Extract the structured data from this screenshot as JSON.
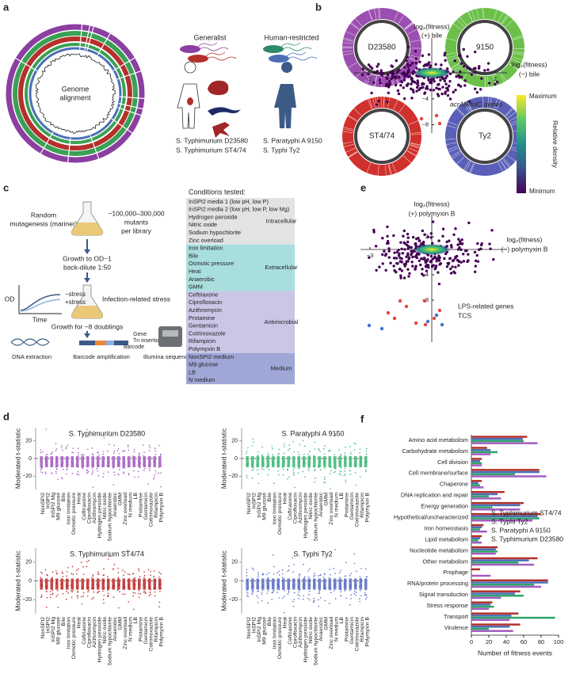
{
  "panel_labels": [
    "a",
    "b",
    "c",
    "d",
    "e",
    "f"
  ],
  "a": {
    "center_label": [
      "Genome",
      "alignment"
    ],
    "generalist": "Generalist",
    "human_restricted": "Human-restricted",
    "legend": [
      {
        "text": "S. Typhimurium D23580",
        "color": "#8b3fa0"
      },
      {
        "text": "S. Typhimurium ST4/74",
        "color": "#b5302a"
      },
      {
        "text": "S. Paratyphi A 9150",
        "color": "#2f8a6a"
      },
      {
        "text": "S. Typhi Ty2",
        "color": "#4a6fb5"
      }
    ]
  },
  "b": {
    "rings": [
      {
        "label": "D23580",
        "color": "#9b4fb0"
      },
      {
        "label": "9150",
        "color": "#6cc04a"
      },
      {
        "label": "ST4/74",
        "color": "#d0312d"
      },
      {
        "label": "Ty2",
        "color": "#5a5fb8"
      }
    ]
  },
  "c": {
    "mutagenesis": [
      "Random",
      "mutagenesis (mariner)"
    ],
    "mutants": [
      "~100,000–300,000",
      "mutants",
      "per library"
    ],
    "growth": [
      "Growth to OD~1",
      "back-dilute 1:50"
    ],
    "od": "OD",
    "time": "Time",
    "minus_stress": "−stress",
    "plus_stress": "+stress",
    "infection": "Infection-related stress",
    "doublings": "Growth for ~8 doublings",
    "dna": "DNA extraction",
    "barcode_amp": "Barcode amplification",
    "illumina": "Illumina sequencing",
    "gene": "Gene",
    "tn": "Tn insertion",
    "barcode": "Barcode",
    "conditions_title": "Conditions tested:",
    "groups": [
      {
        "name": "Intracellular",
        "color": "#e3e3e3",
        "text_color": "#888888",
        "items": [
          "InSPI2 media 1 (low pH, low P)",
          "InSPI2 media 2 (low pH, low P, low Mg)",
          "Hydrogen peroxide",
          "Nitric oxide",
          "Sodium hypochlorite",
          "Zinc overload"
        ]
      },
      {
        "name": "Extracellular",
        "color": "#a9dede",
        "text_color": "#e8f8f8",
        "items": [
          "Iron limitation",
          "Bile",
          "Osmotic pressure",
          "Heat",
          "Anaerobic",
          "GMM"
        ]
      },
      {
        "name": "Antimicrobial",
        "color": "#c9c6e6",
        "text_color": "#eeeefa",
        "items": [
          "Ceftriaxone",
          "Ciprofloxacin",
          "Azithromycin",
          "Protamine",
          "Gentamicin",
          "Cotrimoxazole",
          "Rifampicin",
          "Polymyxin B"
        ]
      },
      {
        "name": "Medium",
        "color": "#9fa7d6",
        "text_color": "#dde2f5",
        "items": [
          "NonSPI2 medium",
          "M9 glucose",
          "LB",
          "N medium"
        ]
      }
    ]
  },
  "d": {
    "ylabel": "Moderated t-statistic",
    "ylim": [
      -35,
      35
    ],
    "yticks": [
      {
        "value": -20,
        "label": "−20"
      },
      0,
      20
    ],
    "conditions": [
      "NonSPI2",
      "InSPI2",
      "InSPI2 Mg",
      "M9 glucose",
      "Bile",
      "Iron limitation",
      "Osmotic pressure",
      "Heat",
      "Ceftriaxone",
      "Ciprofloxacin",
      "Azithromycin",
      "Hydrogen peroxide",
      "Nitric oxide",
      "Sodium hypochlorite",
      "Anaerobic",
      "GMM",
      "Zinc overload",
      "N medium",
      "LB",
      "Protamine",
      "Gentamicin",
      "Cotrimoxazole",
      "Rifampicin",
      "Polymyxin B"
    ],
    "plots": [
      {
        "title": "S. Typhimurium D23580",
        "color": "#a45cc0"
      },
      {
        "title": "S. Paratyphi A 9150",
        "color": "#3cb878"
      },
      {
        "title": "S. Typhimurium ST4/74",
        "color": "#c0282a"
      },
      {
        "title": "S. Typhi Ty2",
        "color": "#5b6cc4"
      }
    ]
  },
  "e": {
    "top": {
      "ylabel": [
        "log₂(fitness)",
        "(+) bile"
      ],
      "xlabel": [
        "log₂(fitness)",
        "(−) bile"
      ],
      "xticks": [
        {
          "value": -2,
          "label": "−2"
        },
        2
      ],
      "yticks": [
        {
          "value": -4,
          "label": "−4"
        },
        {
          "value": -8,
          "label": "−8"
        }
      ],
      "annotation": "acrAB/tolC genes",
      "annotation_color": "#e8463c"
    },
    "bottom": {
      "ylabel": [
        "log₂(fitness)",
        "(+) polymyxin B"
      ],
      "xlabel": [
        "log₂(fitness)",
        "(−) polymyxin B"
      ],
      "xticks": [
        {
          "value": -3,
          "label": "−3"
        }
      ],
      "yticks": [
        2,
        {
          "value": -4,
          "label": "−4"
        },
        {
          "value": -8,
          "label": "−8"
        }
      ],
      "annotations": [
        {
          "text": "LPS-related genes",
          "color": "#e8463c"
        },
        {
          "text": "TCS",
          "color": "#3f6fd8"
        }
      ]
    },
    "colorbar": {
      "label": "Relative density",
      "max": "Maximum",
      "min": "Minimum"
    }
  },
  "f": {
    "type": "bar",
    "xlabel": "Number of fitness events",
    "xlim": [
      0,
      100
    ],
    "xticks": [
      0,
      20,
      40,
      60,
      80,
      100
    ],
    "categories": [
      "Amino acid metabolism",
      "Carbohydrate metabolism",
      "Cell division",
      "Cell membrane/surface",
      "Chaperone",
      "DNA replication and repair",
      "Energy generation",
      "Hypothetical/uncharacterized",
      "Iron homeostasis",
      "Lipid metabolism",
      "Nucleotide metabolism",
      "Other metabolism",
      "Prophage",
      "RNA/protein processing",
      "Signal transduction",
      "Stress response",
      "Transport",
      "Virulence"
    ],
    "series": [
      {
        "name": "S. Typhimurium ST4/74",
        "color": "#b5302a",
        "values": [
          64,
          18,
          12,
          78,
          12,
          38,
          60,
          80,
          14,
          12,
          30,
          76,
          10,
          88,
          56,
          24,
          54,
          56
        ]
      },
      {
        "name": "S. Typhi Ty2",
        "color": "#4a6fb5",
        "values": [
          59,
          22,
          10,
          78,
          8,
          30,
          56,
          76,
          12,
          10,
          28,
          66,
          0,
          88,
          50,
          22,
          46,
          44
        ]
      },
      {
        "name": "S. Paratyphi A 9150",
        "color": "#2fa36a",
        "values": [
          60,
          30,
          12,
          50,
          10,
          20,
          24,
          78,
          10,
          8,
          30,
          54,
          0,
          72,
          60,
          26,
          96,
          20
        ]
      },
      {
        "name": "S. Typhimurium D23580",
        "color": "#a45cc0",
        "values": [
          76,
          22,
          12,
          86,
          14,
          34,
          56,
          70,
          18,
          12,
          28,
          72,
          22,
          80,
          34,
          20,
          44,
          48
        ]
      }
    ]
  }
}
